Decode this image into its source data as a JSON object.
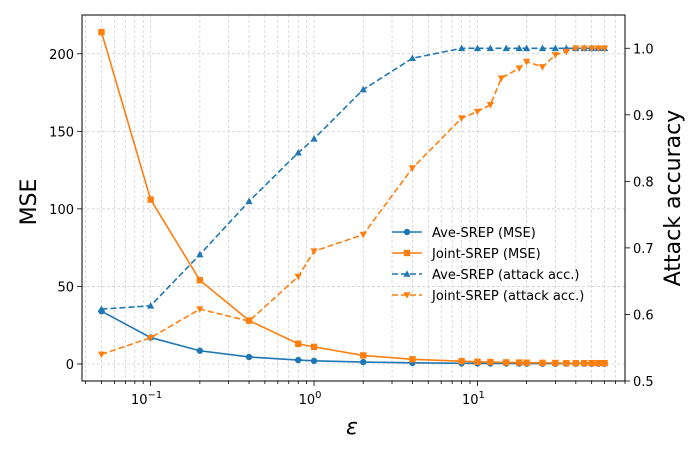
{
  "chart_data": {
    "type": "line",
    "xlabel": "ε",
    "ylabel_left": "MSE",
    "ylabel_right": "Attack accuracy",
    "xscale": "log",
    "xlim": [
      0.038,
      80
    ],
    "ylim_left": [
      -11,
      225
    ],
    "ylim_right": [
      0.5,
      1.05
    ],
    "grid": true,
    "legend_position": "center-right",
    "x_ticks": [
      {
        "value": 0.1,
        "base": "10",
        "exp": "−1"
      },
      {
        "value": 1,
        "base": "10",
        "exp": "0"
      },
      {
        "value": 10,
        "base": "10",
        "exp": "1"
      }
    ],
    "y_ticks_left": [
      0,
      50,
      100,
      150,
      200
    ],
    "y_ticks_right": [
      0.5,
      0.6,
      0.7,
      0.8,
      0.9,
      1.0
    ],
    "y_tick_labels_right": [
      "0.5",
      "0.6",
      "0.7",
      "0.8",
      "0.9",
      "1.0"
    ],
    "series": [
      {
        "name": "Ave-SREP (MSE)",
        "axis": "left",
        "color": "#1f77b4",
        "linestyle": "solid",
        "marker": "circle",
        "x": [
          0.05,
          0.1,
          0.2,
          0.4,
          0.8,
          1,
          2,
          4,
          8,
          10,
          12,
          15,
          18,
          20,
          25,
          30,
          35,
          40,
          45,
          50,
          55,
          60
        ],
        "y": [
          34,
          17,
          8.5,
          4.5,
          2.5,
          2,
          1.2,
          0.7,
          0.4,
          0.35,
          0.3,
          0.3,
          0.25,
          0.25,
          0.2,
          0.2,
          0.2,
          0.2,
          0.2,
          0.2,
          0.2,
          0.2
        ]
      },
      {
        "name": "Joint-SREP (MSE)",
        "axis": "left",
        "color": "#ff7f0e",
        "linestyle": "solid",
        "marker": "square",
        "x": [
          0.05,
          0.1,
          0.2,
          0.4,
          0.8,
          1,
          2,
          4,
          8,
          10,
          12,
          15,
          18,
          20,
          25,
          30,
          35,
          40,
          45,
          50,
          55,
          60
        ],
        "y": [
          214,
          106,
          54,
          28,
          13,
          11,
          5.5,
          3,
          1.8,
          1.4,
          1.2,
          1.0,
          0.9,
          0.8,
          0.7,
          0.6,
          0.5,
          0.5,
          0.5,
          0.5,
          0.5,
          0.5
        ]
      },
      {
        "name": "Ave-SREP (attack acc.)",
        "axis": "right",
        "color": "#1f77b4",
        "linestyle": "dashed",
        "marker": "triangle-up",
        "x": [
          0.05,
          0.1,
          0.2,
          0.4,
          0.8,
          1,
          2,
          4,
          8,
          10,
          12,
          15,
          18,
          20,
          25,
          30,
          35,
          40,
          45,
          50,
          55,
          60
        ],
        "y": [
          0.608,
          0.613,
          0.69,
          0.77,
          0.843,
          0.864,
          0.938,
          0.985,
          1.0,
          1.0,
          1.0,
          1.0,
          1.0,
          1.0,
          1.0,
          1.0,
          1.0,
          1.0,
          1.0,
          1.0,
          1.0,
          1.0
        ]
      },
      {
        "name": "Joint-SREP (attack acc.)",
        "axis": "right",
        "color": "#ff7f0e",
        "linestyle": "dashed",
        "marker": "triangle-down",
        "x": [
          0.05,
          0.1,
          0.2,
          0.4,
          0.8,
          1,
          2,
          4,
          8,
          10,
          12,
          14,
          18,
          20,
          25,
          30,
          35,
          40,
          45,
          50,
          55,
          60
        ],
        "y": [
          0.54,
          0.565,
          0.608,
          0.59,
          0.657,
          0.695,
          0.72,
          0.82,
          0.895,
          0.905,
          0.915,
          0.955,
          0.97,
          0.98,
          0.972,
          0.99,
          0.995,
          1.0,
          1.0,
          1.0,
          1.0,
          1.0
        ]
      }
    ]
  }
}
